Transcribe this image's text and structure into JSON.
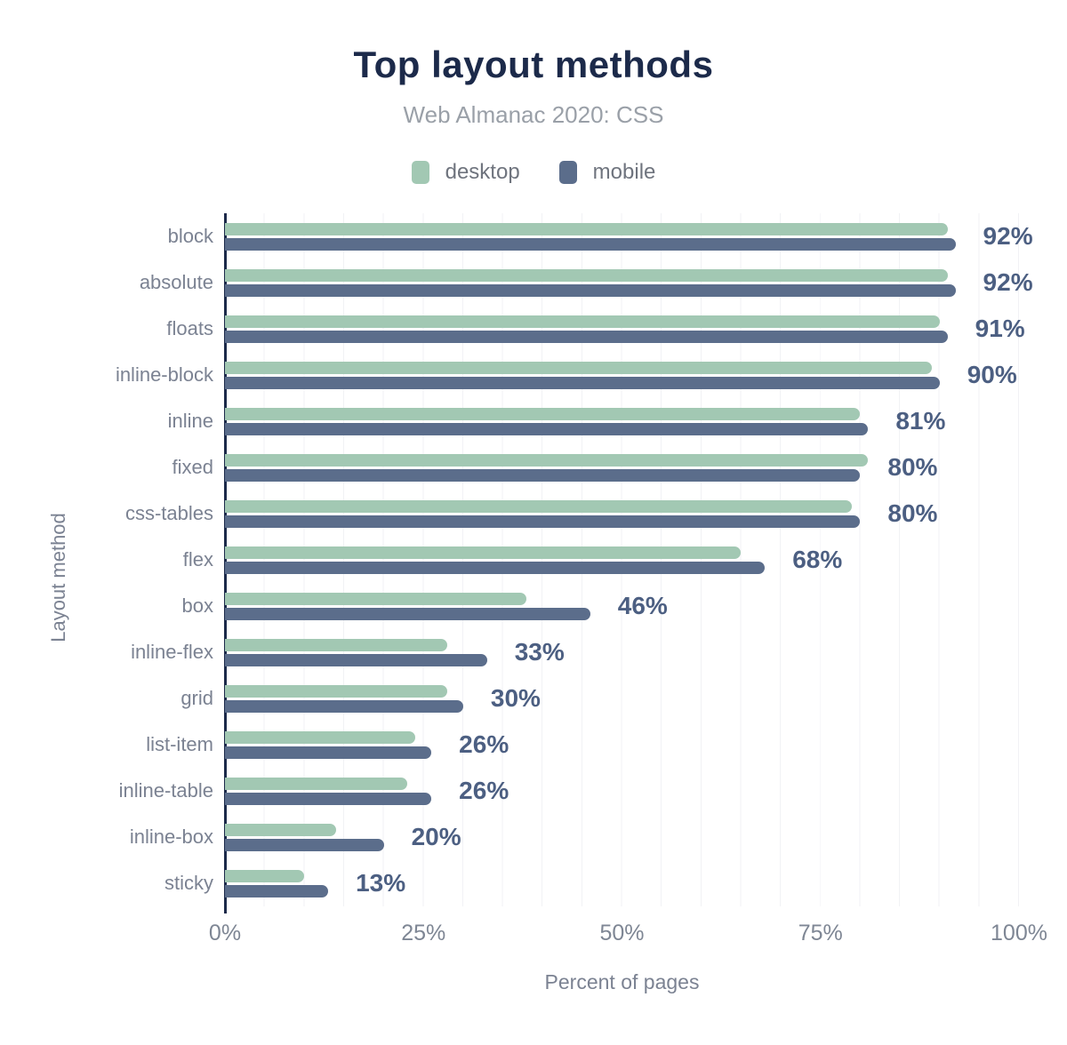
{
  "header": {
    "title": "Top layout methods",
    "subtitle": "Web Almanac 2020: CSS"
  },
  "colors": {
    "title": "#1c2a4a",
    "subtitle": "#9aa0a8",
    "desktop": "#a2c8b3",
    "mobile": "#5b6d8b",
    "value_label": "#4c5f82",
    "axis_line": "#1c2a4a",
    "gridline": "#f1f2f5",
    "axis_text": "#7b8292"
  },
  "chart_data": {
    "type": "bar",
    "orientation": "horizontal",
    "title": "Top layout methods",
    "subtitle": "Web Almanac 2020: CSS",
    "categories": [
      "block",
      "absolute",
      "floats",
      "inline-block",
      "inline",
      "fixed",
      "css-tables",
      "flex",
      "box",
      "inline-flex",
      "grid",
      "list-item",
      "inline-table",
      "inline-box",
      "sticky"
    ],
    "series": [
      {
        "name": "desktop",
        "color": "#a2c8b3",
        "values": [
          91,
          91,
          90,
          89,
          80,
          81,
          79,
          65,
          38,
          28,
          28,
          24,
          23,
          14,
          10
        ]
      },
      {
        "name": "mobile",
        "color": "#5b6d8b",
        "values": [
          92,
          92,
          91,
          90,
          81,
          80,
          80,
          68,
          46,
          33,
          30,
          26,
          26,
          20,
          13
        ]
      }
    ],
    "value_labels": [
      "92%",
      "92%",
      "91%",
      "90%",
      "81%",
      "80%",
      "80%",
      "68%",
      "46%",
      "33%",
      "30%",
      "26%",
      "26%",
      "20%",
      "13%"
    ],
    "value_labels_refer_to": "mobile",
    "xlabel": "Percent of pages",
    "ylabel": "Layout method",
    "xlim": [
      0,
      100
    ],
    "xticks": [
      "0%",
      "25%",
      "50%",
      "75%",
      "100%"
    ],
    "xtick_positions": [
      0,
      25,
      50,
      75,
      100
    ],
    "grid": "vertical, every 5%",
    "legend_position": "top center"
  }
}
